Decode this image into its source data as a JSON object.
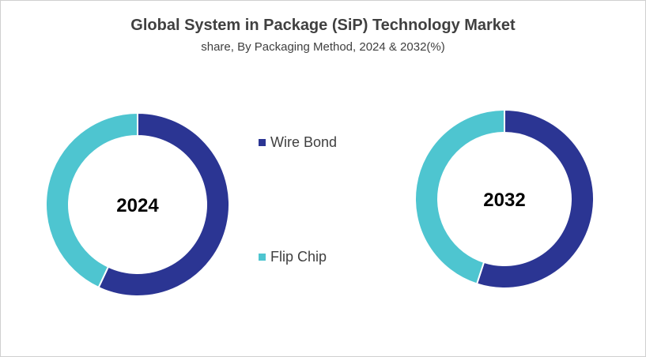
{
  "chart_data": {
    "type": "pie",
    "title": "Global System in Package (SiP) Technology Market",
    "subtitle": "share, By Packaging Method, 2024 & 2032(%)",
    "categories": [
      "Wire Bond",
      "Flip Chip"
    ],
    "colors": {
      "Wire Bond": "#2B3593",
      "Flip Chip": "#4EC5D0"
    },
    "legend_position": "center",
    "charts": [
      {
        "label": "2024",
        "values": [
          57,
          43
        ]
      },
      {
        "label": "2032",
        "values": [
          55,
          45
        ]
      }
    ]
  }
}
